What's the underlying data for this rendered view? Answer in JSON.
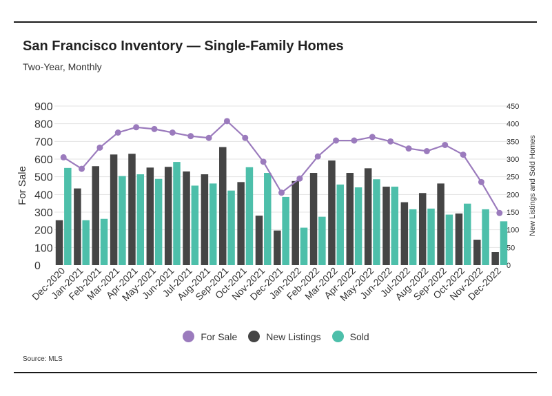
{
  "header": {
    "title": "San Francisco Inventory — Single-Family Homes",
    "subtitle": "Two-Year, Monthly"
  },
  "footer": {
    "source": "Source:  MLS"
  },
  "colors": {
    "for_sale": "#9b7bbd",
    "new_listings": "#454545",
    "sold": "#4dbfaa"
  },
  "chart_data": {
    "type": "bar",
    "categories": [
      "Dec-2020",
      "Jan-2021",
      "Feb-2021",
      "Mar-2021",
      "Apr-2021",
      "May-2021",
      "Jun-2021",
      "Jul-2021",
      "Aug-2021",
      "Sep-2021",
      "Oct-2021",
      "Nov-2021",
      "Dec-2021",
      "Jan-2022",
      "Feb-2022",
      "Mar-2022",
      "Apr-2022",
      "May-2022",
      "Jun-2022",
      "Jul-2022",
      "Aug-2022",
      "Sep-2022",
      "Oct-2022",
      "Nov-2022",
      "Dec-2022"
    ],
    "ylabel": "For Sale",
    "y2label": "New Listings and Sold Homes",
    "ylim": [
      0,
      900
    ],
    "yticks": [
      0,
      100,
      200,
      300,
      400,
      500,
      600,
      700,
      800,
      900
    ],
    "y2lim": [
      0,
      450
    ],
    "y2ticks": [
      0,
      50,
      100,
      150,
      200,
      250,
      300,
      350,
      400,
      450
    ],
    "grid": true,
    "legend_position": "bottom",
    "series": [
      {
        "name": "For Sale",
        "type": "line",
        "axis": "left",
        "values": [
          610,
          545,
          665,
          750,
          780,
          770,
          750,
          730,
          720,
          815,
          720,
          585,
          410,
          490,
          615,
          705,
          705,
          725,
          700,
          660,
          645,
          680,
          625,
          470,
          295
        ]
      },
      {
        "name": "New Listings",
        "type": "bar",
        "axis": "right",
        "values": [
          127,
          217,
          280,
          313,
          315,
          276,
          278,
          265,
          257,
          334,
          235,
          140,
          98,
          238,
          261,
          296,
          261,
          274,
          222,
          178,
          204,
          231,
          146,
          72,
          37
        ]
      },
      {
        "name": "Sold",
        "type": "bar",
        "axis": "right",
        "values": [
          275,
          127,
          131,
          252,
          257,
          244,
          292,
          225,
          231,
          211,
          277,
          261,
          193,
          106,
          137,
          228,
          220,
          243,
          222,
          158,
          160,
          143,
          174,
          158,
          124
        ]
      }
    ]
  }
}
